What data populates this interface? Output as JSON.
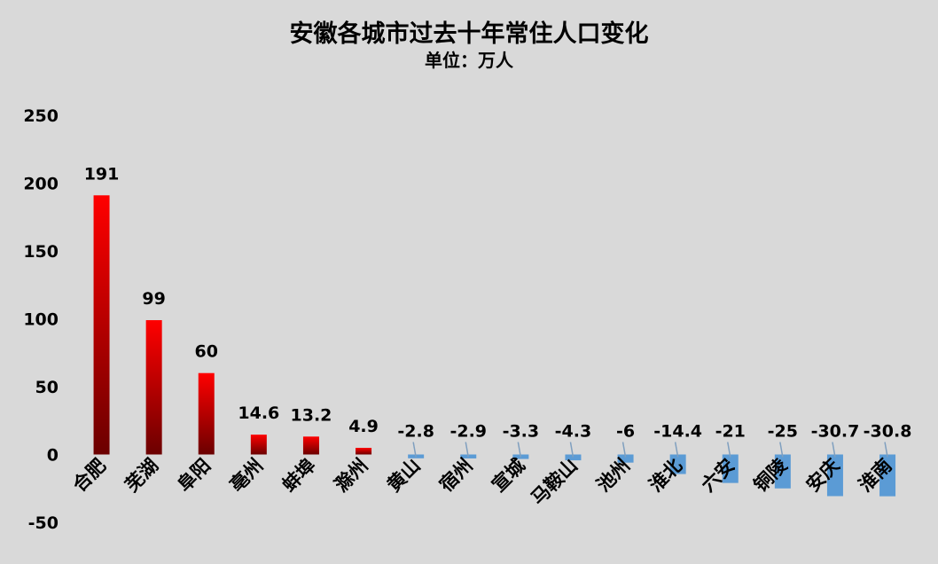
{
  "title": "安徽各城市过去十年常住人口变化",
  "subtitle": "单位：万人",
  "colors": {
    "background": "#d9d9d9",
    "positive_top": "#ff0000",
    "positive_bottom": "#6b0000",
    "negative": "#5b9bd5",
    "leader_line": "#7f9fbf"
  },
  "chart_data": {
    "type": "bar",
    "title": "安徽各城市过去十年常住人口变化",
    "subtitle": "单位：万人",
    "xlabel": "",
    "ylabel": "",
    "ylim": [
      -50,
      250
    ],
    "yticks": [
      "-50",
      "0",
      "50",
      "100",
      "150",
      "200",
      "250"
    ],
    "grid": false,
    "legend": "none",
    "categories": [
      "合肥",
      "芜湖",
      "阜阳",
      "亳州",
      "蚌埠",
      "滁州",
      "黄山",
      "宿州",
      "宣城",
      "马鞍山",
      "池州",
      "淮北",
      "六安",
      "铜陵",
      "安庆",
      "淮南"
    ],
    "values": [
      191,
      99,
      60,
      14.6,
      13.2,
      4.9,
      -2.8,
      -2.9,
      -3.3,
      -4.3,
      -6,
      -14.4,
      -21,
      -25,
      -30.7,
      -30.8
    ],
    "data_labels": [
      "191",
      "99",
      "60",
      "14.6",
      "13.2",
      "4.9",
      "-2.8",
      "-2.9",
      "-3.3",
      "-4.3",
      "-6",
      "-14.4",
      "-21",
      "-25",
      "-30.7",
      "-30.8"
    ]
  }
}
